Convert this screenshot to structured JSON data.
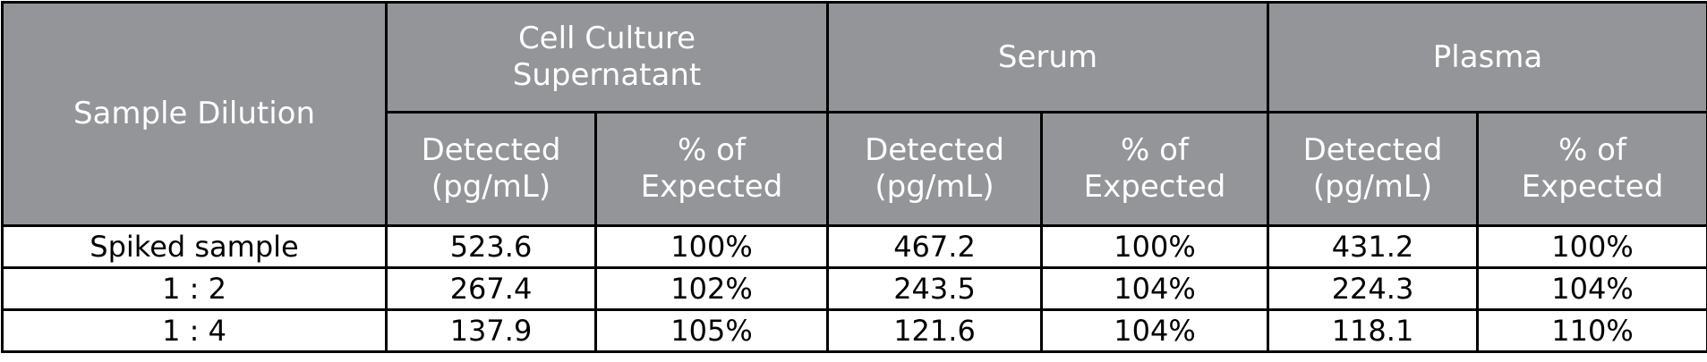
{
  "header": {
    "row_label": "Sample Dilution",
    "groups": [
      {
        "name": "Cell Culture Supernatant",
        "columns": [
          "Detected (pg/mL)",
          "% of Expected"
        ]
      },
      {
        "name": "Serum",
        "columns": [
          "Detected (pg/mL)",
          "% of Expected"
        ]
      },
      {
        "name": "Plasma",
        "columns": [
          "Detected (pg/mL)",
          "% of Expected"
        ]
      }
    ]
  },
  "table": {
    "rows": [
      [
        "Spiked sample",
        "523.6",
        "100%",
        "467.2",
        "100%",
        "431.2",
        "100%"
      ],
      [
        "1 : 2",
        "267.4",
        "102%",
        "243.5",
        "104%",
        "224.3",
        "104%"
      ],
      [
        "1 : 4",
        "137.9",
        "105%",
        "121.6",
        "104%",
        "118.1",
        "110%"
      ]
    ]
  }
}
